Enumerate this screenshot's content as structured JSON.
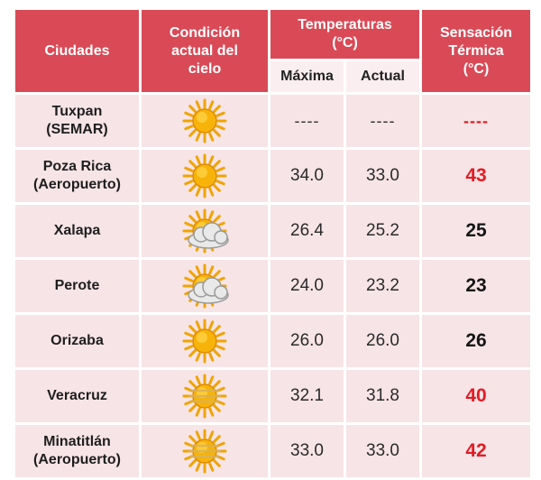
{
  "header": {
    "city": "Ciudades",
    "sky_line1": "Condición",
    "sky_line2": "actual del",
    "sky_line3": "cielo",
    "temps_line1": "Temperaturas",
    "temps_line2": "(°C)",
    "max": "Máxima",
    "actual": "Actual",
    "feel_line1": "Sensación",
    "feel_line2": "Térmica",
    "feel_line3": "(°C)"
  },
  "rows": [
    {
      "city_line1": "Tuxpan",
      "city_line2": "(SEMAR)",
      "icon": "sun-icon",
      "max": "----",
      "actual": "----",
      "feel": "----",
      "feel_color": "#e31b23"
    },
    {
      "city_line1": "Poza Rica",
      "city_line2": "(Aeropuerto)",
      "icon": "sun-icon",
      "max": "34.0",
      "actual": "33.0",
      "feel": "43",
      "feel_color": "#e31b23"
    },
    {
      "city_line1": "Xalapa",
      "city_line2": "",
      "icon": "partly-cloudy-icon",
      "max": "26.4",
      "actual": "25.2",
      "feel": "25",
      "feel_color": "#151515"
    },
    {
      "city_line1": "Perote",
      "city_line2": "",
      "icon": "partly-cloudy-icon",
      "max": "24.0",
      "actual": "23.2",
      "feel": "23",
      "feel_color": "#151515"
    },
    {
      "city_line1": "Orizaba",
      "city_line2": "",
      "icon": "sun-icon",
      "max": "26.0",
      "actual": "26.0",
      "feel": "26",
      "feel_color": "#151515"
    },
    {
      "city_line1": "Veracruz",
      "city_line2": "",
      "icon": "hazy-sun-icon",
      "max": "32.1",
      "actual": "31.8",
      "feel": "40",
      "feel_color": "#e31b23"
    },
    {
      "city_line1": "Minatitlán",
      "city_line2": "(Aeropuerto)",
      "icon": "hazy-sun-icon",
      "max": "33.0",
      "actual": "33.0",
      "feel": "42",
      "feel_color": "#e31b23"
    }
  ],
  "colors": {
    "header_bg": "#d94a56",
    "row_bg": "#f7e4e6",
    "hot": "#e31b23"
  }
}
